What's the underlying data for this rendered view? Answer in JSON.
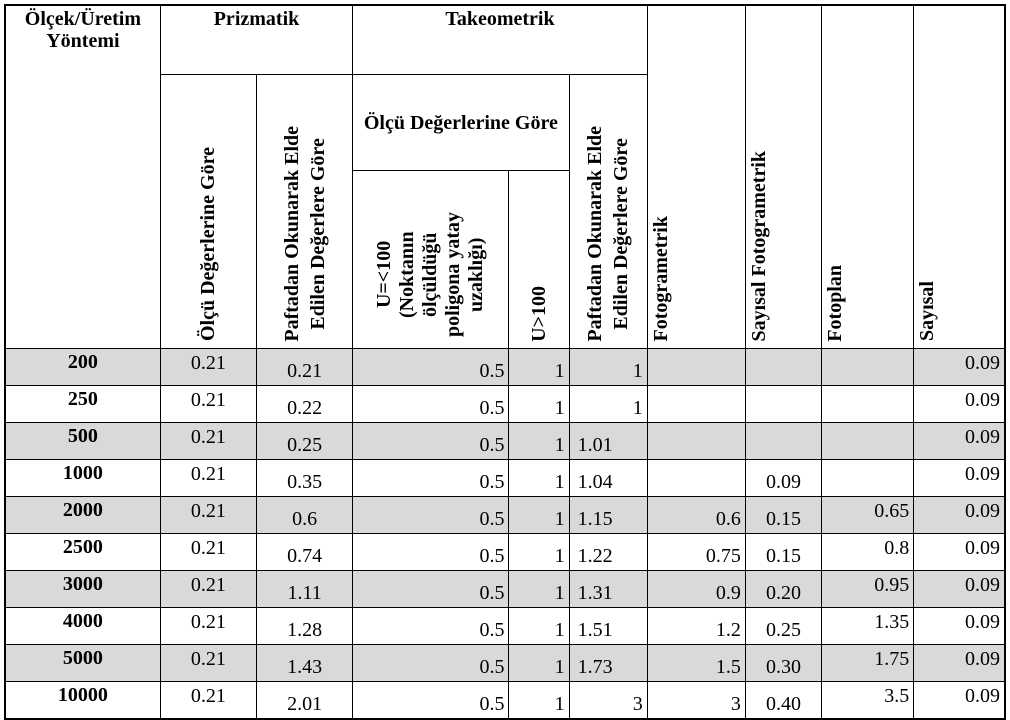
{
  "header": {
    "scale_method": "Ölçek/Üretim Yöntemi",
    "prizmatik": "Prizmatik",
    "takeometrik": "Takeometrik",
    "prizmatik_olcu": "Ölçü Değerlerine Göre",
    "prizmatik_pafta_1": "Paftadan Okunarak Elde",
    "prizmatik_pafta_2": "Edilen Değerlere Göre",
    "takeo_olcu": "Ölçü Değerlerine Göre",
    "u_le_100_1": "U=<100",
    "u_le_100_2": "(Noktanın",
    "u_le_100_3": "ölçüldüğü",
    "u_le_100_4": "poligona yatay",
    "u_le_100_5": "uzaklığı)",
    "u_gt_100": "U>100",
    "takeo_pafta_1": "Paftadan Okunarak Elde",
    "takeo_pafta_2": "Edilen Değerlere Göre",
    "fotogrametrik": "Fotogrametrik",
    "sayisal_fotogrametrik": "Sayısal Fotogrametrik",
    "fotoplan": "Fotoplan",
    "sayisal": "Sayısal"
  },
  "rows": [
    {
      "scale": "200",
      "p_olcu": "0.21",
      "p_pafta": "0.21",
      "u_le": "0.5",
      "u_gt": "1",
      "t_pafta": "1",
      "foto": "",
      "sayisal_foto": "",
      "fotoplan": "",
      "sayisal": "0.09"
    },
    {
      "scale": "250",
      "p_olcu": "0.21",
      "p_pafta": "0.22",
      "u_le": "0.5",
      "u_gt": "1",
      "t_pafta": "1",
      "foto": "",
      "sayisal_foto": "",
      "fotoplan": "",
      "sayisal": "0.09"
    },
    {
      "scale": "500",
      "p_olcu": "0.21",
      "p_pafta": "0.25",
      "u_le": "0.5",
      "u_gt": "1",
      "t_pafta": "1.01",
      "foto": "",
      "sayisal_foto": "",
      "fotoplan": "",
      "sayisal": "0.09"
    },
    {
      "scale": "1000",
      "p_olcu": "0.21",
      "p_pafta": "0.35",
      "u_le": "0.5",
      "u_gt": "1",
      "t_pafta": "1.04",
      "foto": "",
      "sayisal_foto": "0.09",
      "fotoplan": "",
      "sayisal": "0.09"
    },
    {
      "scale": "2000",
      "p_olcu": "0.21",
      "p_pafta": "0.6",
      "u_le": "0.5",
      "u_gt": "1",
      "t_pafta": "1.15",
      "foto": "0.6",
      "sayisal_foto": "0.15",
      "fotoplan": "0.65",
      "sayisal": "0.09"
    },
    {
      "scale": "2500",
      "p_olcu": "0.21",
      "p_pafta": "0.74",
      "u_le": "0.5",
      "u_gt": "1",
      "t_pafta": "1.22",
      "foto": "0.75",
      "sayisal_foto": "0.15",
      "fotoplan": "0.8",
      "sayisal": "0.09"
    },
    {
      "scale": "3000",
      "p_olcu": "0.21",
      "p_pafta": "1.11",
      "u_le": "0.5",
      "u_gt": "1",
      "t_pafta": "1.31",
      "foto": "0.9",
      "sayisal_foto": "0.20",
      "fotoplan": "0.95",
      "sayisal": "0.09"
    },
    {
      "scale": "4000",
      "p_olcu": "0.21",
      "p_pafta": "1.28",
      "u_le": "0.5",
      "u_gt": "1",
      "t_pafta": "1.51",
      "foto": "1.2",
      "sayisal_foto": "0.25",
      "fotoplan": "1.35",
      "sayisal": "0.09"
    },
    {
      "scale": "5000",
      "p_olcu": "0.21",
      "p_pafta": "1.43",
      "u_le": "0.5",
      "u_gt": "1",
      "t_pafta": "1.73",
      "foto": "1.5",
      "sayisal_foto": "0.30",
      "fotoplan": "1.75",
      "sayisal": "0.09"
    },
    {
      "scale": "10000",
      "p_olcu": "0.21",
      "p_pafta": "2.01",
      "u_le": "0.5",
      "u_gt": "1",
      "t_pafta": "3",
      "foto": "3",
      "sayisal_foto": "0.40",
      "fotoplan": "3.5",
      "sayisal": "0.09"
    }
  ],
  "shaded_rows": [
    0,
    2,
    4,
    6,
    8
  ],
  "colors": {
    "shade": "#d9d9d9",
    "border": "#000000"
  }
}
